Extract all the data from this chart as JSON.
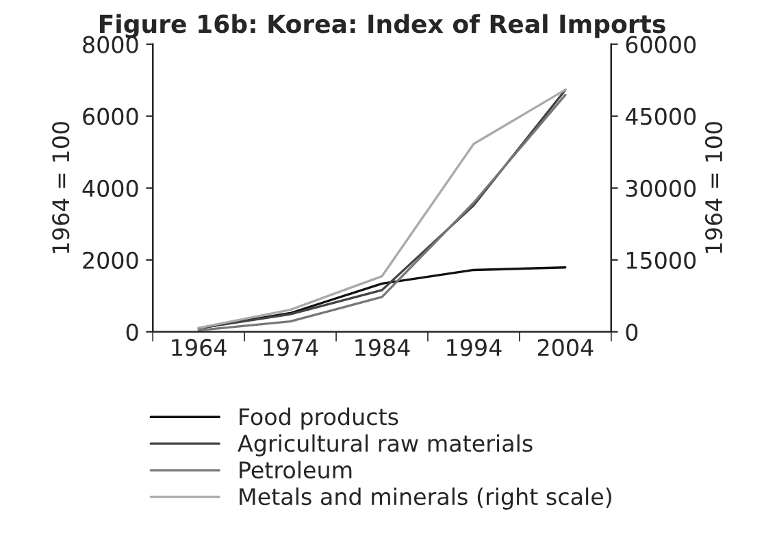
{
  "chart_data": {
    "type": "line",
    "title": "Figure 16b: Korea: Index of Real Imports",
    "ylabel": "1964 = 100",
    "y2label": "1964 = 100",
    "categories": [
      "1964",
      "1974",
      "1984",
      "1994",
      "2004"
    ],
    "series": [
      {
        "name": "Food products",
        "color": "#111111",
        "values": [
          100,
          520,
          1340,
          1720,
          1790
        ]
      },
      {
        "name": "Agricultural raw materials",
        "color": "#444444",
        "values": [
          100,
          490,
          1160,
          3520,
          6730
        ]
      },
      {
        "name": "Petroleum",
        "color": "#777777",
        "values": [
          40,
          290,
          970,
          3590,
          6590
        ]
      },
      {
        "name": "Metals and minerals (right scale)",
        "color": "#aaaaaa",
        "axis": "y2",
        "values": [
          800,
          4600,
          11600,
          39200,
          50500
        ]
      }
    ],
    "ylim": [
      0,
      8000
    ],
    "yticks": [
      0,
      2000,
      4000,
      6000,
      8000
    ],
    "y2lim": [
      0,
      60000
    ],
    "y2ticks": [
      0,
      15000,
      30000,
      45000,
      60000
    ],
    "legend": "bottom",
    "grid": false
  }
}
